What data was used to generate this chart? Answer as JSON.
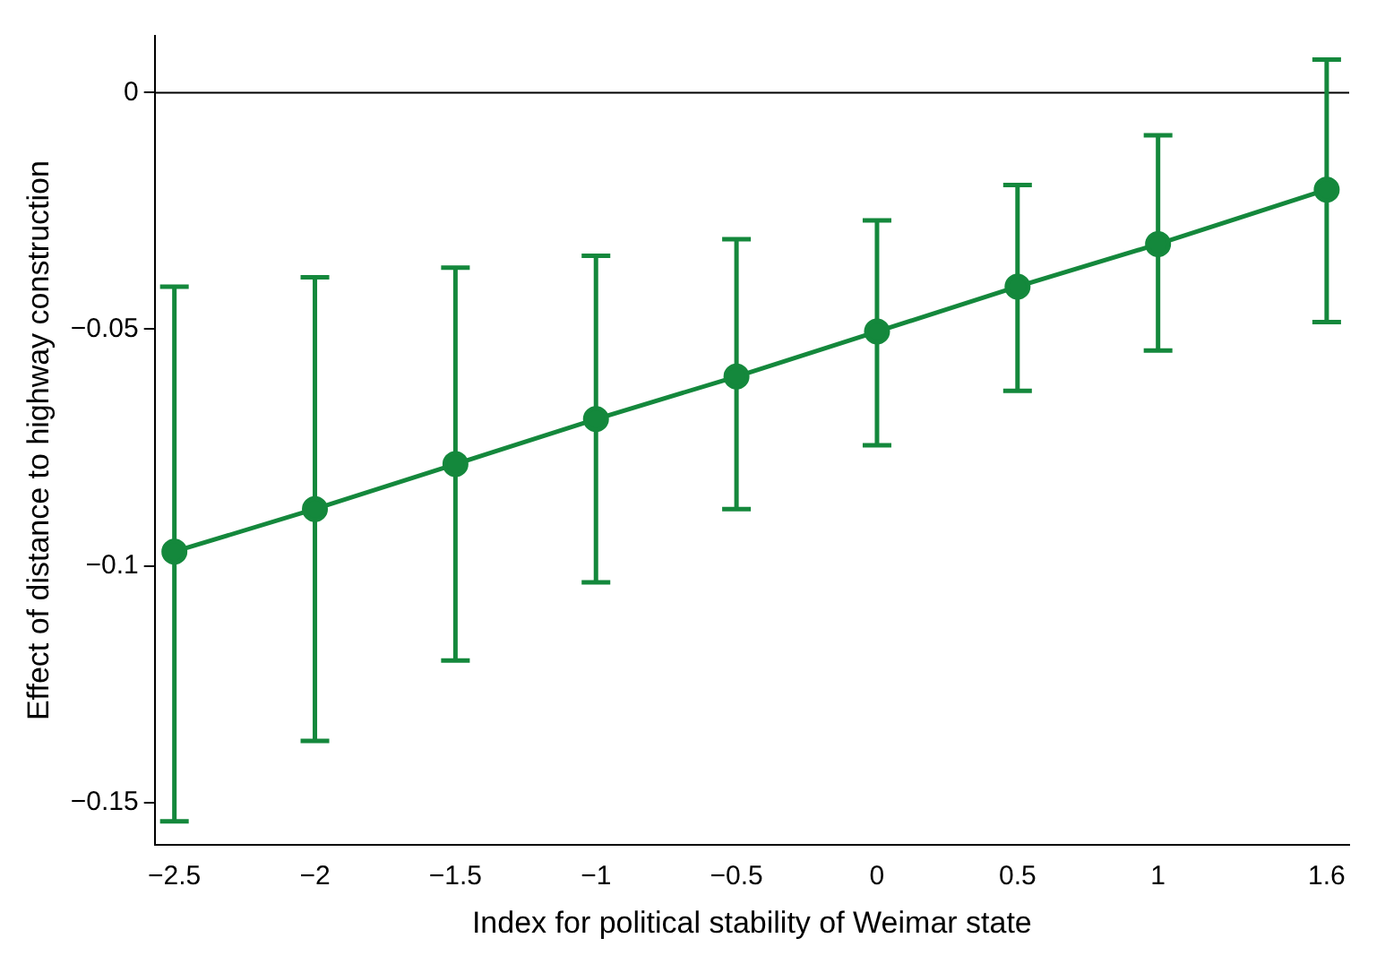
{
  "chart_data": {
    "type": "line",
    "xlabel": "Index for political stability of Weimar state",
    "ylabel": "Effect of distance to highway construction",
    "x": [
      -2.5,
      -2,
      -1.5,
      -1,
      -0.5,
      0,
      0.5,
      1,
      1.6
    ],
    "series": [
      {
        "color": "#14883c",
        "values": [
          -0.097,
          -0.088,
          -0.0785,
          -0.069,
          -0.06,
          -0.0505,
          -0.041,
          -0.032,
          -0.0205
        ],
        "errors": [
          [
            -0.154,
            -0.041
          ],
          [
            -0.137,
            -0.039
          ],
          [
            -0.12,
            -0.037
          ],
          [
            -0.1035,
            -0.0345
          ],
          [
            -0.088,
            -0.031
          ],
          [
            -0.0745,
            -0.027
          ],
          [
            -0.063,
            -0.0195
          ],
          [
            -0.0545,
            -0.009
          ],
          [
            -0.0485,
            0.007
          ]
        ]
      }
    ],
    "xlim": [
      -2.57,
      1.68
    ],
    "ylim": [
      -0.159,
      0.012
    ],
    "xticks": [
      {
        "value": -2.5,
        "label": "−2.5"
      },
      {
        "value": -2,
        "label": "−2"
      },
      {
        "value": -1.5,
        "label": "−1.5"
      },
      {
        "value": -1,
        "label": "−1"
      },
      {
        "value": -0.5,
        "label": "−0.5"
      },
      0,
      0.5,
      1,
      1.6
    ],
    "yticks": [
      {
        "value": -0.15,
        "label": "−0.15"
      },
      {
        "value": -0.1,
        "label": "−0.1"
      },
      {
        "value": -0.05,
        "label": "−0.05"
      },
      0
    ],
    "ref_lines": [
      {
        "axis": "y",
        "value": 0,
        "color": "#000000"
      }
    ],
    "marker": "circle",
    "line_style": "solid",
    "grid": false,
    "legend": false
  }
}
